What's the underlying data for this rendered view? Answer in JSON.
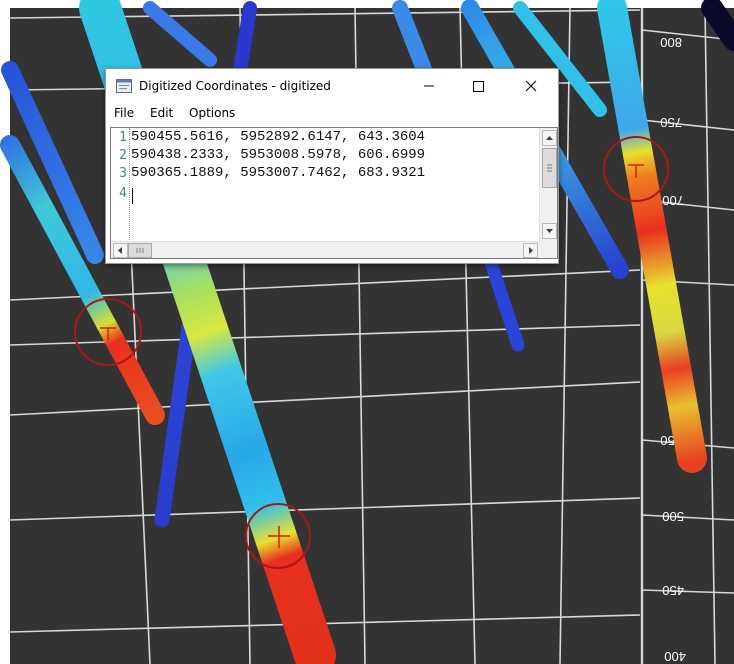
{
  "window": {
    "title": "Digitized Coordinates - digitized",
    "icon": "notepad-window-icon",
    "minimize_icon": "minimize-icon",
    "maximize_icon": "maximize-icon",
    "close_icon": "close-icon"
  },
  "menu": {
    "file": "File",
    "edit": "Edit",
    "options": "Options"
  },
  "editor": {
    "lines": [
      {
        "number": "1",
        "text": "590455.5616, 5952892.6147, 643.3604"
      },
      {
        "number": "2",
        "text": "590438.2333, 5953008.5978, 606.6999"
      },
      {
        "number": "3",
        "text": "590365.1889, 5953007.7462, 683.9321"
      },
      {
        "number": "4",
        "text": ""
      }
    ]
  },
  "viewport": {
    "background_color": "#333333",
    "grid_color": "#dddddd",
    "marker_color": "#b01818",
    "axis_labels": [
      "800",
      "750",
      "700",
      "550",
      "500",
      "450",
      "400"
    ]
  }
}
